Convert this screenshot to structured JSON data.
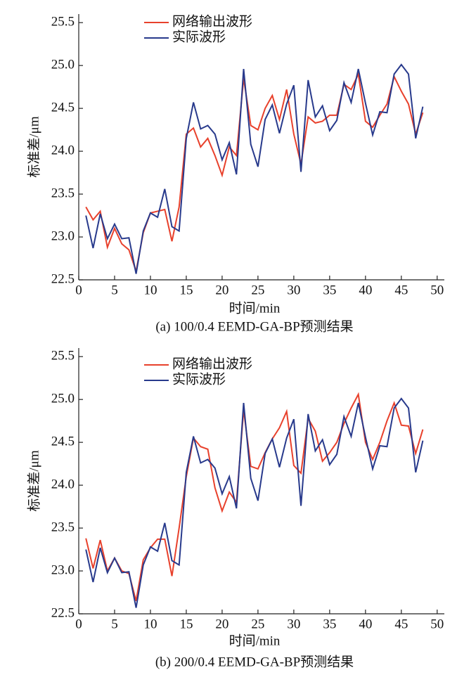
{
  "chart_data": [
    {
      "type": "line",
      "caption": "(a) 100/0.4 EEMD-GA-BP预测结果",
      "xlabel": "时间/min",
      "ylabel": "标准差/μm",
      "x": [
        1,
        2,
        3,
        4,
        5,
        6,
        7,
        8,
        9,
        10,
        11,
        12,
        13,
        14,
        15,
        16,
        17,
        18,
        19,
        20,
        21,
        22,
        23,
        24,
        25,
        26,
        27,
        28,
        29,
        30,
        31,
        32,
        33,
        34,
        35,
        36,
        37,
        38,
        39,
        40,
        41,
        42,
        43,
        44,
        45,
        46,
        47,
        48
      ],
      "series": [
        {
          "name": "网络输出波形",
          "color": "#e8412c",
          "values": [
            23.35,
            23.2,
            23.3,
            22.88,
            23.1,
            22.92,
            22.85,
            22.6,
            23.05,
            23.28,
            23.3,
            23.32,
            22.95,
            23.35,
            24.2,
            24.27,
            24.05,
            24.15,
            23.95,
            23.72,
            24.05,
            23.95,
            24.85,
            24.3,
            24.25,
            24.5,
            24.65,
            24.37,
            24.72,
            24.2,
            23.85,
            24.4,
            24.33,
            24.35,
            24.42,
            24.42,
            24.78,
            24.72,
            24.9,
            24.35,
            24.28,
            24.42,
            24.55,
            24.87,
            24.7,
            24.55,
            24.2,
            24.45
          ]
        },
        {
          "name": "实际波形",
          "color": "#283a8c",
          "values": [
            23.25,
            22.87,
            23.27,
            22.98,
            23.15,
            22.98,
            22.99,
            22.57,
            23.07,
            23.28,
            23.23,
            23.56,
            23.12,
            23.07,
            24.15,
            24.57,
            24.26,
            24.3,
            24.2,
            23.9,
            24.1,
            23.73,
            24.96,
            24.08,
            23.82,
            24.37,
            24.54,
            24.21,
            24.55,
            24.77,
            23.76,
            24.83,
            24.4,
            24.53,
            24.24,
            24.36,
            24.8,
            24.57,
            24.96,
            24.56,
            24.19,
            24.46,
            24.45,
            24.9,
            25.01,
            24.9,
            24.15,
            24.52
          ]
        }
      ],
      "xlim": [
        0,
        51
      ],
      "ylim": [
        22.5,
        25.6
      ],
      "xticks": [
        0,
        5,
        10,
        15,
        20,
        25,
        30,
        35,
        40,
        45,
        50
      ],
      "yticks": [
        22.5,
        {
          "value": 23,
          "label": "23.0"
        },
        23.5,
        {
          "value": 24,
          "label": "24.0"
        },
        24.5,
        {
          "value": 25,
          "label": "25.0"
        },
        25.5
      ]
    },
    {
      "type": "line",
      "caption": "(b) 200/0.4 EEMD-GA-BP预测结果",
      "xlabel": "时间/min",
      "ylabel": "标准差/μm",
      "x": [
        1,
        2,
        3,
        4,
        5,
        6,
        7,
        8,
        9,
        10,
        11,
        12,
        13,
        14,
        15,
        16,
        17,
        18,
        19,
        20,
        21,
        22,
        23,
        24,
        25,
        26,
        27,
        28,
        29,
        30,
        31,
        32,
        33,
        34,
        35,
        36,
        37,
        38,
        39,
        40,
        41,
        42,
        43,
        44,
        45,
        46,
        47,
        48
      ],
      "series": [
        {
          "name": "网络输出波形",
          "color": "#e8412c",
          "values": [
            23.38,
            23.03,
            23.36,
            23.0,
            23.15,
            23.0,
            22.97,
            22.65,
            23.13,
            23.27,
            23.37,
            23.37,
            22.94,
            23.5,
            24.1,
            24.55,
            24.45,
            24.42,
            23.97,
            23.7,
            23.92,
            23.8,
            24.88,
            24.22,
            24.19,
            24.38,
            24.54,
            24.67,
            24.86,
            24.23,
            24.14,
            24.78,
            24.63,
            24.28,
            24.38,
            24.5,
            24.72,
            24.9,
            25.06,
            24.5,
            24.3,
            24.5,
            24.75,
            24.96,
            24.7,
            24.69,
            24.37,
            24.65
          ]
        },
        {
          "name": "实际波形",
          "color": "#283a8c",
          "values": [
            23.25,
            22.87,
            23.27,
            22.98,
            23.15,
            22.98,
            22.99,
            22.57,
            23.07,
            23.28,
            23.23,
            23.56,
            23.12,
            23.07,
            24.15,
            24.57,
            24.26,
            24.3,
            24.2,
            23.9,
            24.1,
            23.73,
            24.96,
            24.08,
            23.82,
            24.37,
            24.54,
            24.21,
            24.55,
            24.77,
            23.76,
            24.83,
            24.4,
            24.53,
            24.24,
            24.36,
            24.8,
            24.57,
            24.96,
            24.56,
            24.19,
            24.46,
            24.45,
            24.9,
            25.01,
            24.9,
            24.15,
            24.52
          ]
        }
      ],
      "xlim": [
        0,
        51
      ],
      "ylim": [
        22.5,
        25.6
      ],
      "xticks": [
        0,
        5,
        10,
        15,
        20,
        25,
        30,
        35,
        40,
        45,
        50
      ],
      "yticks": [
        22.5,
        {
          "value": 23,
          "label": "23.0"
        },
        23.5,
        {
          "value": 24,
          "label": "24.0"
        },
        24.5,
        {
          "value": 25,
          "label": "25.0"
        },
        25.5
      ]
    }
  ]
}
